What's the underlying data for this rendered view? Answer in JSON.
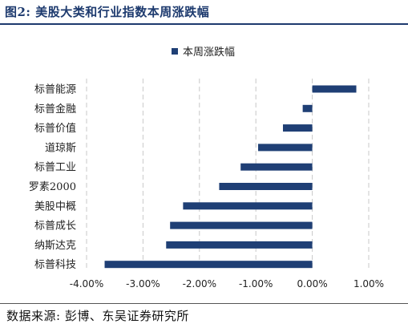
{
  "figure": {
    "title": "图2:  美股大类和行业指数本周涨跌幅",
    "source": "数据来源:  彭博、东吴证券研究所"
  },
  "chart_data": {
    "type": "bar",
    "orientation": "horizontal",
    "categories": [
      "标普能源",
      "标普金融",
      "标普价值",
      "道琼斯",
      "标普工业",
      "罗素2000",
      "美股中概",
      "标普成长",
      "纳斯达克",
      "标普科技"
    ],
    "series": [
      {
        "name": "本周涨跌幅",
        "values": [
          0.78,
          -0.17,
          -0.52,
          -0.96,
          -1.27,
          -1.65,
          -2.29,
          -2.52,
          -2.59,
          -3.68
        ]
      }
    ],
    "xlim": [
      -4.0,
      1.0
    ],
    "xticks": [
      -4.0,
      -3.0,
      -2.0,
      -1.0,
      0.0,
      1.0
    ],
    "xtick_labels": [
      "-4.00%",
      "-3.00%",
      "-2.00%",
      "-1.00%",
      "0.00%",
      "1.00%"
    ],
    "unit": "%",
    "grid": "vertical-dashed",
    "legend_position": "top-center",
    "colors": {
      "bar": "#1f3f75",
      "grid": "#c8c8c8",
      "title": "#1d3a6e"
    }
  }
}
